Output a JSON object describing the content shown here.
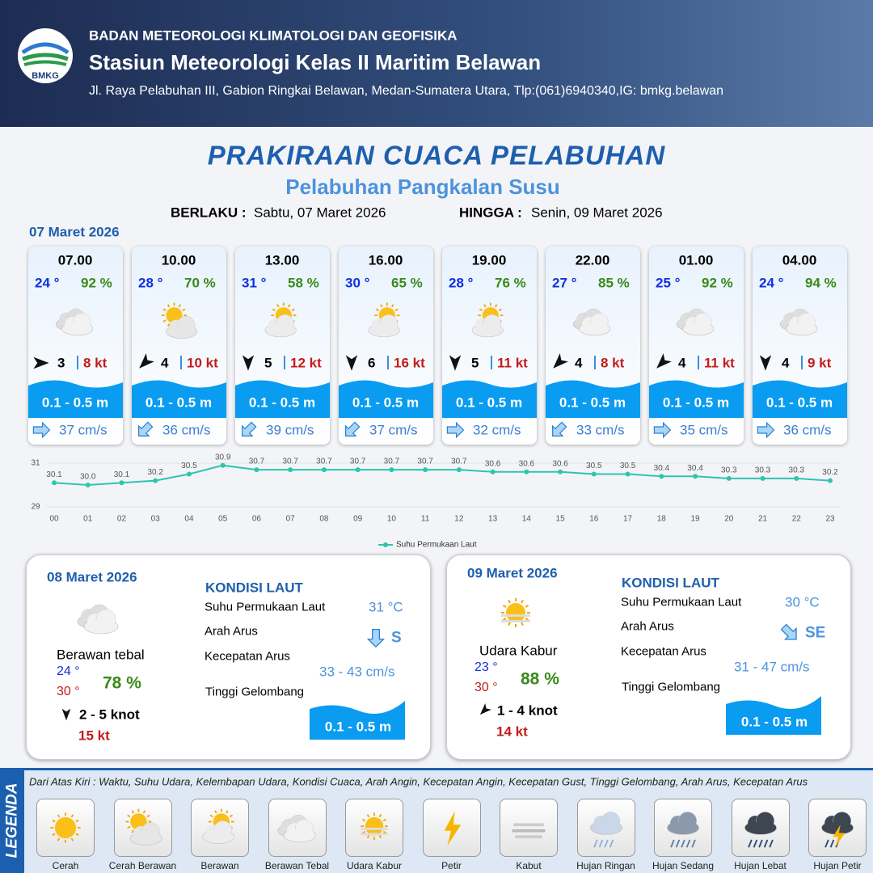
{
  "header": {
    "logo_text": "BMKG",
    "agency": "BADAN METEOROLOGI KLIMATOLOGI DAN GEOFISIKA",
    "station": "Stasiun Meteorologi Kelas II Maritim Belawan",
    "address": "Jl. Raya Pelabuhan III, Gabion Ringkai Belawan, Medan-Sumatera Utara, Tlp:(061)6940340,IG: bmkg.belawan"
  },
  "title": "PRAKIRAAN CUACA PELABUHAN",
  "subtitle": "Pelabuhan Pangkalan Susu",
  "validity": {
    "from_label": "BERLAKU :",
    "from": "Sabtu, 07 Maret 2026",
    "to_label": "HINGGA :",
    "to": "Senin, 09 Maret 2026"
  },
  "day1": {
    "date": "07 Maret 2026",
    "slots": [
      {
        "time": "07.00",
        "temp": "24 °",
        "humidity": "92 %",
        "wind": 3,
        "gust": "8 kt",
        "wave": "0.1 - 0.5 m",
        "current": "37 cm/s"
      },
      {
        "time": "10.00",
        "temp": "28 °",
        "humidity": "70 %",
        "wind": 4,
        "gust": "10 kt",
        "wave": "0.1 - 0.5 m",
        "current": "36 cm/s"
      },
      {
        "time": "13.00",
        "temp": "31 °",
        "humidity": "58 %",
        "wind": 5,
        "gust": "12 kt",
        "wave": "0.1 - 0.5 m",
        "current": "39 cm/s"
      },
      {
        "time": "16.00",
        "temp": "30 °",
        "humidity": "65 %",
        "wind": 6,
        "gust": "16 kt",
        "wave": "0.1 - 0.5 m",
        "current": "37 cm/s"
      },
      {
        "time": "19.00",
        "temp": "28 °",
        "humidity": "76 %",
        "wind": 5,
        "gust": "11 kt",
        "wave": "0.1 - 0.5 m",
        "current": "32 cm/s"
      },
      {
        "time": "22.00",
        "temp": "27 °",
        "humidity": "85 %",
        "wind": 4,
        "gust": "8 kt",
        "wave": "0.1 - 0.5 m",
        "current": "33 cm/s"
      },
      {
        "time": "01.00",
        "temp": "25 °",
        "humidity": "92 %",
        "wind": 4,
        "gust": "11 kt",
        "wave": "0.1 - 0.5 m",
        "current": "35 cm/s"
      },
      {
        "time": "04.00",
        "temp": "24 °",
        "humidity": "94 %",
        "wind": 4,
        "gust": "9 kt",
        "wave": "0.1 - 0.5 m",
        "current": "36 cm/s"
      }
    ]
  },
  "chart_data": {
    "type": "line",
    "categories": [
      "00",
      "01",
      "02",
      "03",
      "04",
      "05",
      "06",
      "07",
      "08",
      "09",
      "10",
      "11",
      "12",
      "13",
      "14",
      "15",
      "16",
      "17",
      "18",
      "19",
      "20",
      "21",
      "22",
      "23"
    ],
    "series": [
      {
        "name": "Suhu Permukaan Laut",
        "color": "#2ec4b0",
        "values": [
          30.1,
          30.0,
          30.1,
          30.2,
          30.5,
          30.9,
          30.7,
          30.7,
          30.7,
          30.7,
          30.7,
          30.7,
          30.7,
          30.6,
          30.6,
          30.6,
          30.5,
          30.5,
          30.4,
          30.4,
          30.3,
          30.3,
          30.3,
          30.2
        ],
        "value_labels": [
          "30.1",
          "30.0",
          "30.1",
          "30.2",
          "30.5",
          "30.9",
          "30.7",
          "30.7",
          "30.7",
          "30.7",
          "30.7",
          "30.7",
          "30.7",
          "30.6",
          "30.6",
          "30.6",
          "30.5",
          "30.5",
          "30.4",
          "30.4",
          "30.3",
          "30.3",
          "30.3",
          "30.2"
        ]
      }
    ],
    "ylim": [
      29,
      31
    ],
    "yticks": [
      29,
      31
    ],
    "grid": true,
    "legend": "bottom"
  },
  "day2": {
    "date": "08 Maret 2026",
    "condition": "Berawan tebal",
    "temp_min": "24 °",
    "temp_max": "30 °",
    "humidity": "78 %",
    "wind": "2  - 5 knot",
    "gust": "15 kt",
    "sea": {
      "title": "KONDISI LAUT",
      "sst_label": "Suhu Permukaan Laut",
      "sst": "31 °C",
      "dir_label": "Arah Arus",
      "dir": "S",
      "speed_label": "Kecepatan Arus",
      "speed": "33 - 43 cm/s",
      "wave_label": "Tinggi Gelombang",
      "wave": "0.1 - 0.5 m"
    }
  },
  "day3": {
    "date": "09 Maret 2026",
    "condition": "Udara Kabur",
    "temp_min": "23 °",
    "temp_max": "30 °",
    "humidity": "88 %",
    "wind": "1 - 4 knot",
    "gust": "14 kt",
    "sea": {
      "title": "KONDISI LAUT",
      "sst_label": "Suhu Permukaan Laut",
      "sst": "30 °C",
      "dir_label": "Arah Arus",
      "dir": "SE",
      "speed_label": "Kecepatan Arus",
      "speed": "31  - 47 cm/s",
      "wave_label": "Tinggi Gelombang",
      "wave": "0.1 - 0.5 m"
    }
  },
  "legend": {
    "title": "LEGENDA",
    "description": "Dari Atas Kiri : Waktu, Suhu Udara, Kelembapan Udara, Kondisi Cuaca, Arah Angin, Kecepatan Angin, Kecepatan Gust, Tinggi Gelombang, Arah Arus, Kecepatan Arus",
    "items": [
      "Cerah",
      "Cerah Berawan",
      "Berawan",
      "Berawan Tebal",
      "Udara Kabur",
      "Petir",
      "Kabut",
      "Hujan Ringan",
      "Hujan Sedang",
      "Hujan Lebat",
      "Hujan Petir"
    ]
  }
}
